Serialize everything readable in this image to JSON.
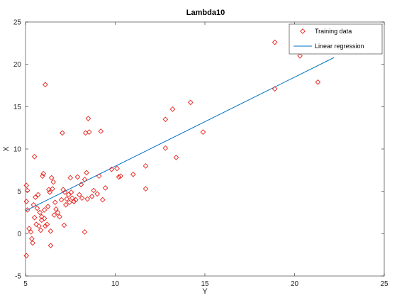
{
  "chart_data": {
    "type": "scatter",
    "title": "Lambda10",
    "xlabel": "Y",
    "ylabel": "X",
    "xlim": [
      5,
      25
    ],
    "ylim": [
      -5,
      25
    ],
    "xticks": [
      "5",
      "10",
      "15",
      "20",
      "25"
    ],
    "yticks": [
      "-5",
      "0",
      "5",
      "10",
      "15",
      "20",
      "25"
    ],
    "grid": false,
    "legend_position": "top-right",
    "series": [
      {
        "name": "Training data",
        "kind": "scatter",
        "marker": "diamond",
        "color": "#e8221c",
        "points": [
          [
            5.05,
            5.7
          ],
          [
            5.1,
            5.1
          ],
          [
            5.05,
            3.8
          ],
          [
            5.1,
            2.8
          ],
          [
            5.05,
            -2.6
          ],
          [
            5.2,
            0.6
          ],
          [
            5.3,
            0.2
          ],
          [
            5.35,
            -0.6
          ],
          [
            5.4,
            -1.1
          ],
          [
            5.5,
            1.9
          ],
          [
            5.45,
            3.4
          ],
          [
            5.55,
            4.3
          ],
          [
            5.6,
            1.1
          ],
          [
            5.65,
            3.0
          ],
          [
            5.5,
            9.1
          ],
          [
            5.7,
            4.6
          ],
          [
            5.75,
            0.9
          ],
          [
            5.8,
            2.5
          ],
          [
            5.85,
            0.4
          ],
          [
            5.9,
            1.6
          ],
          [
            5.9,
            2.0
          ],
          [
            5.95,
            6.8
          ],
          [
            6.0,
            7.1
          ],
          [
            6.05,
            1.8
          ],
          [
            6.05,
            2.8
          ],
          [
            6.1,
            0.9
          ],
          [
            6.1,
            17.6
          ],
          [
            6.2,
            1.1
          ],
          [
            6.25,
            3.2
          ],
          [
            6.3,
            5.2
          ],
          [
            6.35,
            4.9
          ],
          [
            6.4,
            -1.4
          ],
          [
            6.4,
            0.3
          ],
          [
            6.45,
            6.6
          ],
          [
            6.5,
            5.3
          ],
          [
            6.55,
            6.1
          ],
          [
            6.6,
            2.2
          ],
          [
            6.65,
            3.7
          ],
          [
            6.7,
            2.9
          ],
          [
            6.8,
            2.5
          ],
          [
            6.9,
            2.0
          ],
          [
            7.0,
            4.0
          ],
          [
            7.05,
            11.9
          ],
          [
            7.1,
            5.2
          ],
          [
            7.15,
            1.0
          ],
          [
            7.2,
            4.9
          ],
          [
            7.25,
            3.4
          ],
          [
            7.3,
            4.1
          ],
          [
            7.4,
            4.6
          ],
          [
            7.45,
            3.7
          ],
          [
            7.5,
            6.6
          ],
          [
            7.55,
            4.9
          ],
          [
            7.6,
            4.2
          ],
          [
            7.7,
            3.8
          ],
          [
            7.8,
            4.0
          ],
          [
            7.9,
            6.7
          ],
          [
            8.0,
            4.6
          ],
          [
            8.1,
            5.8
          ],
          [
            8.15,
            4.2
          ],
          [
            8.3,
            0.2
          ],
          [
            8.3,
            6.4
          ],
          [
            8.35,
            11.9
          ],
          [
            8.4,
            7.2
          ],
          [
            8.45,
            4.1
          ],
          [
            8.5,
            13.6
          ],
          [
            8.55,
            12.0
          ],
          [
            8.7,
            4.4
          ],
          [
            8.8,
            5.1
          ],
          [
            9.0,
            4.7
          ],
          [
            9.1,
            6.8
          ],
          [
            9.2,
            12.1
          ],
          [
            9.3,
            4.0
          ],
          [
            9.45,
            5.4
          ],
          [
            9.8,
            7.6
          ],
          [
            10.1,
            7.7
          ],
          [
            10.2,
            6.7
          ],
          [
            10.3,
            6.8
          ],
          [
            11.0,
            7.0
          ],
          [
            11.7,
            5.3
          ],
          [
            11.7,
            8.0
          ],
          [
            12.8,
            13.5
          ],
          [
            12.8,
            10.1
          ],
          [
            13.2,
            14.7
          ],
          [
            13.4,
            9.0
          ],
          [
            14.2,
            15.5
          ],
          [
            14.9,
            12.0
          ],
          [
            18.9,
            17.1
          ],
          [
            18.9,
            22.6
          ],
          [
            20.3,
            21.8
          ],
          [
            20.3,
            21.0
          ],
          [
            21.3,
            17.9
          ],
          [
            22.2,
            24.1
          ]
        ]
      },
      {
        "name": "Linear regression",
        "kind": "line",
        "color": "#0072bd",
        "points": [
          [
            5.0,
            2.7
          ],
          [
            22.2,
            20.8
          ]
        ]
      }
    ]
  }
}
